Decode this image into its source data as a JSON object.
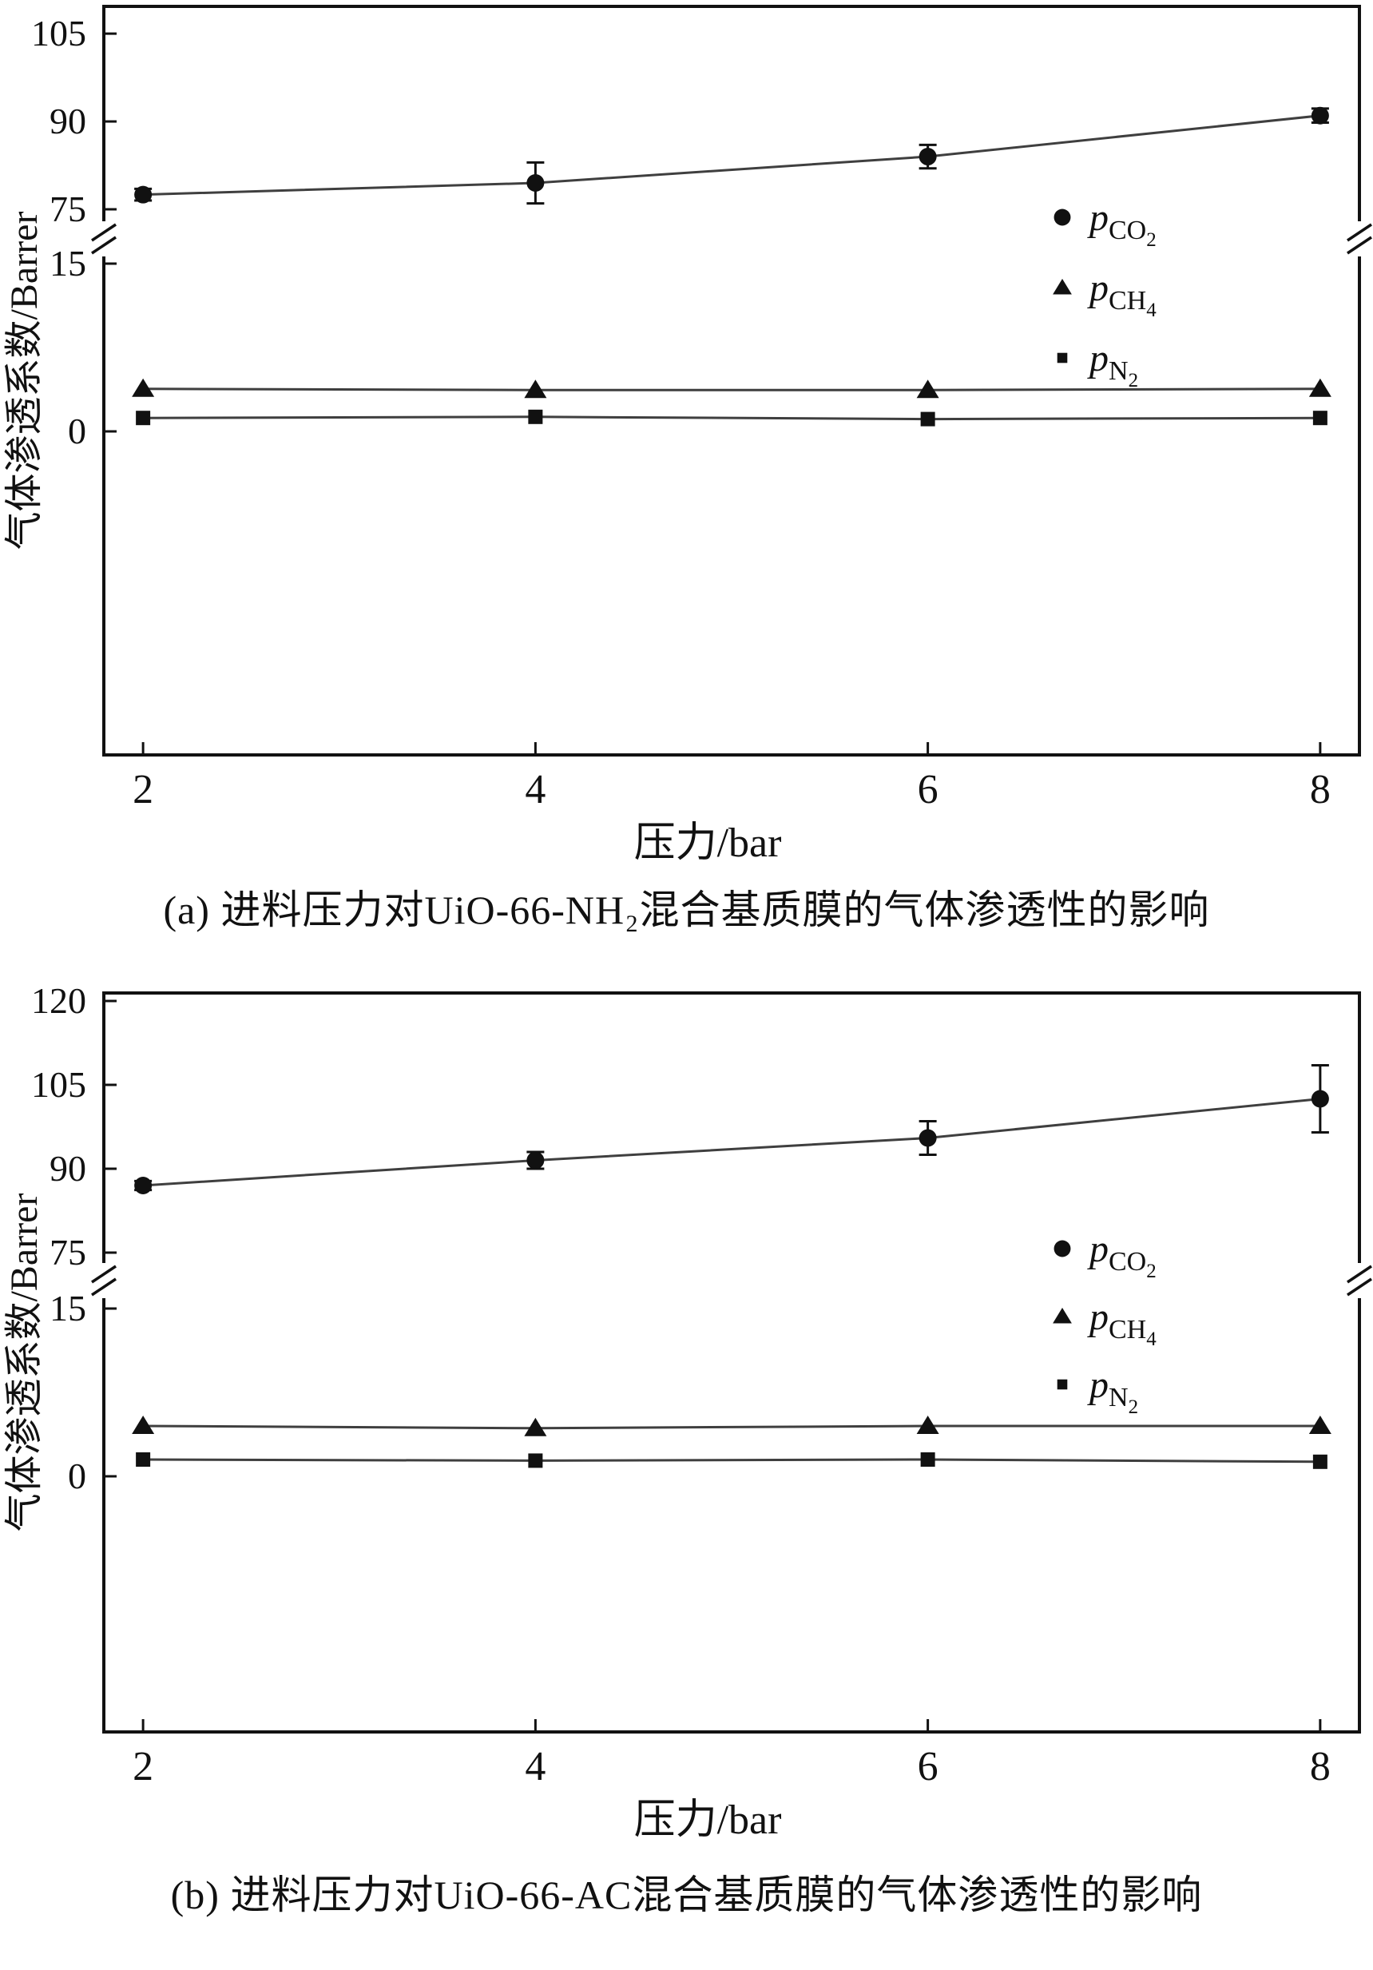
{
  "colors": {
    "ink": "#111111",
    "line": "#3f3f3f",
    "background": "#ffffff"
  },
  "chart_data": [
    {
      "id": "a",
      "type": "line",
      "caption": "(a) 进料压力对UiO-66-NH₂混合基质膜的气体渗透性的影响",
      "xlabel": "压力/bar",
      "ylabel": "气体渗透系数/Barrer",
      "x": [
        2,
        4,
        6,
        8
      ],
      "xlim": [
        1.8,
        8.2
      ],
      "y_axis": {
        "upper_ticks": [
          75,
          90,
          105
        ],
        "lower_ticks": [
          0,
          15
        ],
        "break_between": [
          15,
          75
        ],
        "upper_range": [
          75,
          110
        ],
        "lower_range": [
          -6,
          15
        ]
      },
      "grid": false,
      "legend_position": "center-right",
      "series": [
        {
          "name": "p_CO2",
          "marker": "circle",
          "values": [
            77.5,
            79.5,
            84.0,
            91.0
          ],
          "errors": [
            1.0,
            3.5,
            2.0,
            1.2
          ]
        },
        {
          "name": "p_CH4",
          "marker": "triangle",
          "values": [
            3.8,
            3.7,
            3.7,
            3.8
          ],
          "errors": [
            0,
            0,
            0,
            0
          ]
        },
        {
          "name": "p_N2",
          "marker": "square",
          "values": [
            1.2,
            1.3,
            1.1,
            1.2
          ],
          "errors": [
            0,
            0,
            0,
            0
          ]
        }
      ],
      "legend": [
        {
          "marker": "circle",
          "base": "p",
          "sub": "CO",
          "subsub": "2"
        },
        {
          "marker": "triangle",
          "base": "p",
          "sub": "CH",
          "subsub": "4"
        },
        {
          "marker": "square",
          "base": "p",
          "sub": "N",
          "subsub": "2"
        }
      ]
    },
    {
      "id": "b",
      "type": "line",
      "caption": "(b) 进料压力对UiO-66-AC混合基质膜的气体渗透性的影响",
      "xlabel": "压力/bar",
      "ylabel": "气体渗透系数/Barrer",
      "x": [
        2,
        4,
        6,
        8
      ],
      "xlim": [
        1.8,
        8.2
      ],
      "y_axis": {
        "upper_ticks": [
          75,
          90,
          105,
          120
        ],
        "lower_ticks": [
          0,
          15
        ],
        "break_between": [
          15,
          75
        ],
        "upper_range": [
          75,
          121
        ],
        "lower_range": [
          -6,
          15
        ]
      },
      "grid": false,
      "legend_position": "center-right",
      "series": [
        {
          "name": "p_CO2",
          "marker": "circle",
          "values": [
            87.0,
            91.5,
            95.5,
            102.5
          ],
          "errors": [
            0.8,
            1.5,
            3.0,
            6.0
          ]
        },
        {
          "name": "p_CH4",
          "marker": "triangle",
          "values": [
            4.5,
            4.3,
            4.5,
            4.5
          ],
          "errors": [
            0,
            0,
            0,
            0
          ]
        },
        {
          "name": "p_N2",
          "marker": "square",
          "values": [
            1.5,
            1.4,
            1.5,
            1.3
          ],
          "errors": [
            0,
            0,
            0,
            0
          ]
        }
      ],
      "legend": [
        {
          "marker": "circle",
          "base": "p",
          "sub": "CO",
          "subsub": "2"
        },
        {
          "marker": "triangle",
          "base": "p",
          "sub": "CH",
          "subsub": "4"
        },
        {
          "marker": "square",
          "base": "p",
          "sub": "N",
          "subsub": "2"
        }
      ]
    }
  ]
}
